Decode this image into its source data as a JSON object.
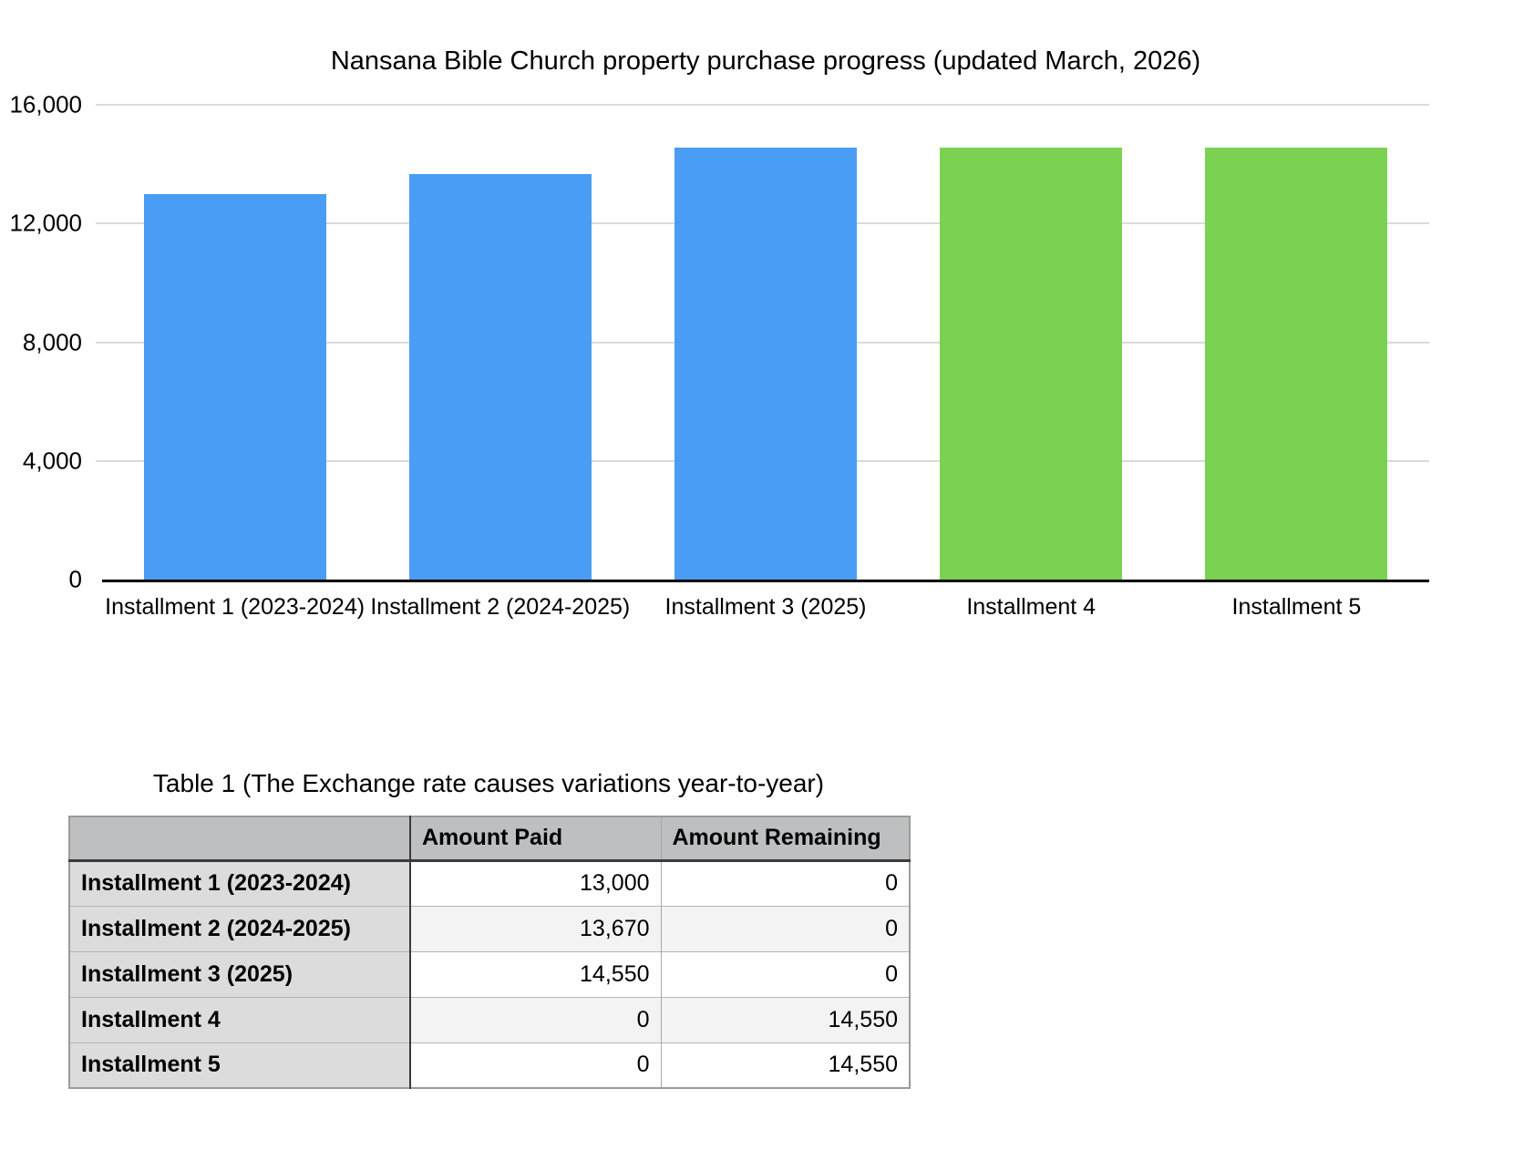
{
  "chart_data": {
    "type": "bar",
    "title": "Nansana Bible Church property purchase progress (updated March, 2026)",
    "categories": [
      "Installment 1 (2023-2024)",
      "Installment 2 (2024-2025)",
      "Installment 3 (2025)",
      "Installment 4",
      "Installment 5"
    ],
    "values": [
      13000,
      13670,
      14550,
      14550,
      14550
    ],
    "bar_colors": [
      "#4A9DF4",
      "#4A9DF4",
      "#4A9DF4",
      "#7BD152",
      "#7BD152"
    ],
    "ylim": [
      0,
      16000
    ],
    "y_tick_labels": [
      "16,000",
      "12,000",
      "8,000",
      "4,000",
      "0"
    ],
    "xlabel": "",
    "ylabel": "",
    "grid": true,
    "legend_position": "none"
  },
  "colors": {
    "bar_paid_blue": "#4A9DF4",
    "bar_remaining_green": "#7BD152",
    "gridline": "#dadada",
    "axis_line": "#000000",
    "table_header_bg": "#bdbfc0",
    "table_rowlabel_bg": "#dcdcdc",
    "table_alt_row_bg": "#f3f3f3"
  },
  "table": {
    "title": "Table 1 (The Exchange rate causes variations year-to-year)",
    "columns": [
      "",
      "Amount Paid",
      "Amount Remaining"
    ],
    "rows": [
      {
        "label": "Installment 1 (2023-2024)",
        "amount_paid": "13,000",
        "amount_remaining": "0"
      },
      {
        "label": "Installment 2 (2024-2025)",
        "amount_paid": "13,670",
        "amount_remaining": "0"
      },
      {
        "label": "Installment 3 (2025)",
        "amount_paid": "14,550",
        "amount_remaining": "0"
      },
      {
        "label": "Installment 4",
        "amount_paid": "0",
        "amount_remaining": "14,550"
      },
      {
        "label": "Installment 5",
        "amount_paid": "0",
        "amount_remaining": "14,550"
      }
    ]
  }
}
